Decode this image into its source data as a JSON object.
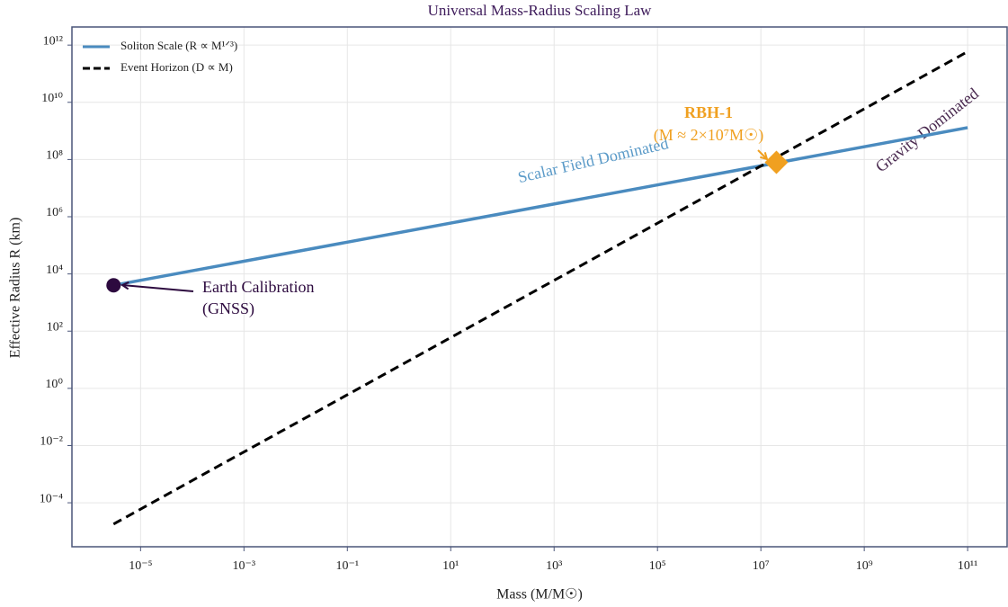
{
  "chart_data": {
    "type": "line",
    "title": "Universal Mass-Radius Scaling Law",
    "xlabel": "Mass (M/M☉)",
    "ylabel": "Effective Radius R (km)",
    "xscale": "log",
    "yscale": "log",
    "grid": true,
    "legend": "upper left",
    "xlim": [
      4.7e-07,
      580000000000.0
    ],
    "ylim": [
      2.9e-06,
      4300000000000.0
    ],
    "xticks": [
      {
        "value": 1e-05,
        "label": "10⁻⁵"
      },
      {
        "value": 0.001,
        "label": "10⁻³"
      },
      {
        "value": 0.1,
        "label": "10⁻¹"
      },
      {
        "value": 10,
        "label": "10¹"
      },
      {
        "value": 1000,
        "label": "10³"
      },
      {
        "value": 100000,
        "label": "10⁵"
      },
      {
        "value": 10000000,
        "label": "10⁷"
      },
      {
        "value": 1000000000,
        "label": "10⁹"
      },
      {
        "value": 100000000000,
        "label": "10¹¹"
      }
    ],
    "yticks": [
      {
        "value": 0.0001,
        "label": "10⁻⁴"
      },
      {
        "value": 0.01,
        "label": "10⁻²"
      },
      {
        "value": 1,
        "label": "10⁰"
      },
      {
        "value": 100,
        "label": "10²"
      },
      {
        "value": 10000,
        "label": "10⁴"
      },
      {
        "value": 1000000,
        "label": "10⁶"
      },
      {
        "value": 100000000,
        "label": "10⁸"
      },
      {
        "value": 10000000000,
        "label": "10¹⁰"
      },
      {
        "value": 1000000000000,
        "label": "10¹²"
      }
    ],
    "series": [
      {
        "name": "Soliton Scale (R ∝ M¹ᐟ³)",
        "color": "#4a8bbf",
        "dash": false,
        "x": [
          3e-06,
          100000000000.0
        ],
        "values": [
          4000,
          1300000000
        ]
      },
      {
        "name": "Event Horizon (D ∝ M)",
        "color": "#000000",
        "dash": true,
        "x": [
          3e-06,
          100000000000.0
        ],
        "values": [
          1.8e-05,
          590000000000.0
        ]
      }
    ],
    "annotations": [
      {
        "lines": [
          "Earth Calibration",
          "(GNSS)"
        ],
        "x": 3e-06,
        "y": 4000,
        "color": "#2d0a3f",
        "marker": "circle"
      },
      {
        "lines": [
          "RBH-1",
          "(M ≈ 2×10⁷M☉)"
        ],
        "x": 20000000,
        "y": 80000000,
        "color": "#f0a020",
        "marker": "diamond"
      }
    ],
    "region_labels": [
      {
        "text": "Scalar Field Dominated",
        "color": "#5a9ac8"
      },
      {
        "text": "Gravity Dominated",
        "color": "#4a2a50"
      }
    ]
  }
}
